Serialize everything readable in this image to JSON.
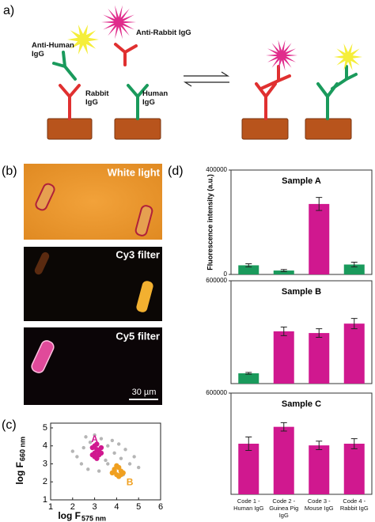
{
  "figure": {
    "panel_a": {
      "label": "a)",
      "anti_human": "Anti-Human IgG",
      "anti_rabbit": "Anti-Rabbit IgG",
      "rabbit": "Rabbit IgG",
      "human": "Human IgG"
    },
    "panel_b": {
      "label": "(b)",
      "filters": [
        "White light",
        "Cy3 filter",
        "Cy5 filter"
      ],
      "scale_bar": "30 µm"
    },
    "panel_c_label": "(c)",
    "panel_d_label": "(d)"
  },
  "chart_data": [
    {
      "type": "scatter",
      "xlabel": "log F",
      "xlabel_sub": "575 nm",
      "ylabel": "log F",
      "ylabel_sub": "660 nm",
      "xlim": [
        1,
        6
      ],
      "ylim": [
        1,
        5
      ],
      "xticks": [
        1,
        2,
        3,
        4,
        5,
        6
      ],
      "yticks": [
        1,
        2,
        3,
        4,
        5
      ],
      "series": [
        {
          "color": "#b5b5b5",
          "x": [
            2.2,
            2.5,
            2.8,
            3.3,
            3.6,
            3.9,
            4.2,
            4.6,
            2.4,
            2.9,
            3.5,
            4.0,
            4.4,
            4.8,
            2.7,
            3.2,
            3.8,
            4.3,
            2.0,
            5.0,
            3.0,
            3.6,
            2.6,
            4.1
          ],
          "values": [
            3.4,
            3.9,
            4.2,
            4.4,
            4.0,
            3.6,
            3.3,
            3.0,
            3.0,
            3.5,
            3.2,
            2.9,
            3.8,
            3.4,
            2.7,
            2.6,
            4.3,
            2.4,
            3.7,
            2.8,
            4.6,
            3.0,
            4.5,
            4.1
          ]
        },
        {
          "color": "#d0188f",
          "x": [
            2.9,
            3.0,
            3.1,
            3.2,
            3.3,
            3.0,
            3.1,
            3.2,
            2.9,
            3.3,
            3.1,
            3.0
          ],
          "values": [
            3.9,
            3.6,
            3.8,
            3.5,
            3.9,
            4.0,
            3.3,
            3.7,
            3.5,
            3.6,
            4.1,
            3.4
          ]
        },
        {
          "color": "#f0a020",
          "x": [
            3.8,
            3.9,
            4.0,
            4.1,
            4.2,
            4.3,
            4.0,
            4.1,
            3.9,
            4.2
          ],
          "values": [
            2.5,
            2.7,
            2.4,
            2.8,
            2.6,
            2.5,
            2.9,
            2.3,
            2.6,
            2.4
          ]
        }
      ],
      "annotations": [
        {
          "text": "A",
          "x": 3.0,
          "y": 4.35,
          "color": "#d0188f"
        },
        {
          "text": "B",
          "x": 4.6,
          "y": 1.95,
          "color": "#f0a020"
        }
      ]
    },
    {
      "type": "bar",
      "title": "Sample A",
      "ylabel": "Fluorescence intensity (a.u.)",
      "values": [
        35000,
        15000,
        270000,
        38000
      ],
      "errors": [
        6000,
        4000,
        25000,
        9000
      ],
      "colors": [
        "#1a9a5c",
        "#1a9a5c",
        "#d0188f",
        "#1a9a5c"
      ],
      "ylim": [
        0,
        400000
      ],
      "yticks": [
        0,
        400000
      ]
    },
    {
      "type": "bar",
      "title": "Sample B",
      "values": [
        60000,
        305000,
        295000,
        350000
      ],
      "errors": [
        5000,
        25000,
        25000,
        30000
      ],
      "colors": [
        "#1a9a5c",
        "#d0188f",
        "#d0188f",
        "#d0188f"
      ],
      "ylim": [
        0,
        600000
      ],
      "yticks": [
        600000
      ]
    },
    {
      "type": "bar",
      "title": "Sample C",
      "categories": [
        "Code 1 - Human IgG",
        "Code 2 - Guinea Pig IgG",
        "Code 3 - Mouse IgG",
        "Code 4 - Rabbit IgG"
      ],
      "values": [
        300000,
        400000,
        290000,
        300000
      ],
      "errors": [
        40000,
        25000,
        25000,
        30000
      ],
      "colors": [
        "#d0188f",
        "#d0188f",
        "#d0188f",
        "#d0188f"
      ],
      "ylim": [
        0,
        600000
      ],
      "yticks": [
        600000
      ]
    }
  ]
}
